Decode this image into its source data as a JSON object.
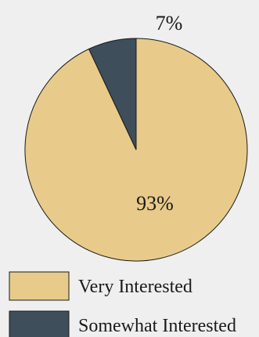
{
  "chart_data": {
    "type": "pie",
    "title": "",
    "slices": [
      {
        "label": "Very Interested",
        "value": 93,
        "value_label": "93%",
        "color": "#e8cb8a"
      },
      {
        "label": "Somewhat Interested",
        "value": 7,
        "value_label": "7%",
        "color": "#3e4e5b"
      }
    ],
    "start_angle_deg": 0,
    "direction": "clockwise",
    "legend_position": "bottom-left",
    "border_color": "#1a1a1a",
    "background": "#efefef"
  }
}
